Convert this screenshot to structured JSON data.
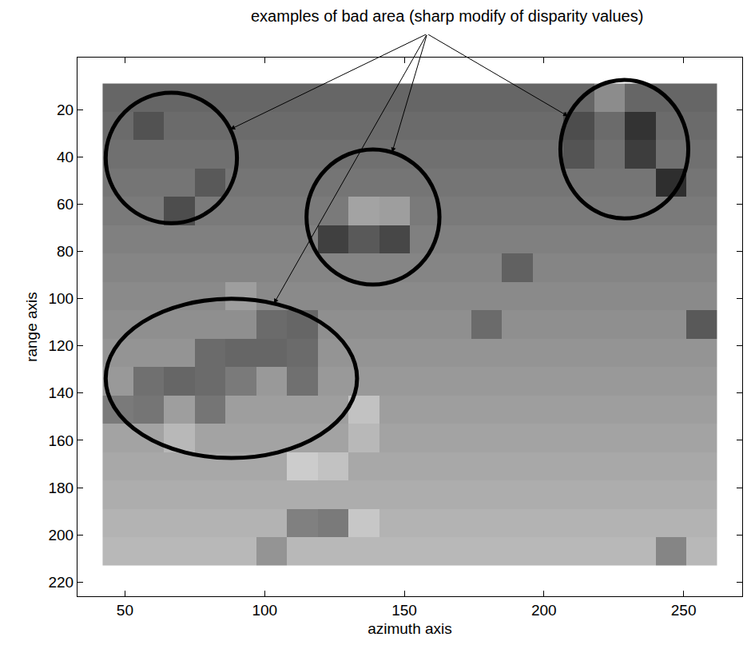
{
  "chart_data": {
    "type": "heatmap",
    "annotation": "examples of bad area (sharp modify of disparity values)",
    "x_label": "azimuth axis",
    "y_label": "range axis",
    "x": [
      47.5,
      58.5,
      69.5,
      80.5,
      91.5,
      102.5,
      113.5,
      124.5,
      135.5,
      146.5,
      157.5,
      168.5,
      179.5,
      190.5,
      201.5,
      212.5,
      223.5,
      234.5,
      245.5,
      256.5
    ],
    "y": [
      15,
      27,
      39,
      51,
      63,
      75,
      87,
      99,
      111,
      123,
      135,
      147,
      159,
      171,
      183,
      195,
      207
    ],
    "z": [
      [
        40,
        40,
        40,
        40,
        40,
        40,
        40,
        40,
        40,
        40,
        40,
        40,
        40,
        40,
        40,
        40,
        55,
        40,
        40,
        40
      ],
      [
        42,
        32,
        42,
        42,
        42,
        42,
        42,
        42,
        42,
        42,
        42,
        42,
        42,
        42,
        42,
        30,
        42,
        20,
        42,
        42
      ],
      [
        44,
        44,
        44,
        44,
        44,
        44,
        44,
        44,
        44,
        44,
        44,
        44,
        44,
        44,
        44,
        33,
        44,
        24,
        44,
        44
      ],
      [
        46,
        46,
        46,
        35,
        46,
        46,
        46,
        46,
        46,
        46,
        46,
        46,
        46,
        46,
        46,
        46,
        46,
        46,
        18,
        46
      ],
      [
        48,
        48,
        30,
        48,
        48,
        48,
        48,
        48,
        64,
        62,
        48,
        48,
        48,
        48,
        48,
        48,
        48,
        48,
        48,
        48
      ],
      [
        50,
        50,
        50,
        50,
        50,
        50,
        50,
        25,
        35,
        28,
        50,
        50,
        50,
        50,
        50,
        50,
        50,
        50,
        50,
        50
      ],
      [
        52,
        52,
        52,
        52,
        52,
        52,
        52,
        52,
        52,
        52,
        52,
        52,
        52,
        38,
        52,
        52,
        52,
        52,
        52,
        52
      ],
      [
        54,
        54,
        54,
        54,
        62,
        54,
        54,
        54,
        54,
        54,
        54,
        54,
        54,
        54,
        54,
        54,
        54,
        54,
        54,
        54
      ],
      [
        56,
        56,
        56,
        56,
        56,
        42,
        40,
        56,
        56,
        56,
        56,
        56,
        42,
        56,
        56,
        56,
        56,
        56,
        56,
        35
      ],
      [
        58,
        58,
        58,
        42,
        40,
        40,
        42,
        58,
        58,
        58,
        58,
        58,
        58,
        58,
        58,
        58,
        58,
        58,
        58,
        58
      ],
      [
        60,
        44,
        40,
        42,
        48,
        60,
        44,
        60,
        60,
        60,
        60,
        60,
        60,
        60,
        60,
        60,
        60,
        60,
        60,
        60
      ],
      [
        48,
        46,
        62,
        46,
        62,
        62,
        62,
        62,
        76,
        62,
        62,
        62,
        62,
        62,
        62,
        62,
        62,
        62,
        62,
        62
      ],
      [
        64,
        64,
        72,
        64,
        64,
        64,
        64,
        64,
        72,
        64,
        64,
        64,
        64,
        64,
        64,
        64,
        64,
        64,
        64,
        64
      ],
      [
        66,
        66,
        66,
        66,
        66,
        66,
        80,
        76,
        66,
        66,
        66,
        66,
        66,
        66,
        66,
        66,
        66,
        66,
        66,
        66
      ],
      [
        68,
        68,
        68,
        68,
        68,
        68,
        68,
        68,
        68,
        68,
        68,
        68,
        68,
        68,
        68,
        68,
        68,
        68,
        68,
        68
      ],
      [
        70,
        70,
        70,
        70,
        70,
        70,
        50,
        48,
        78,
        70,
        70,
        70,
        70,
        70,
        70,
        70,
        70,
        70,
        70,
        70
      ],
      [
        72,
        72,
        72,
        72,
        72,
        58,
        72,
        72,
        72,
        72,
        72,
        72,
        72,
        72,
        72,
        72,
        72,
        72,
        52,
        72
      ]
    ],
    "zlim": [
      0,
      100
    ],
    "xlim": [
      33,
      271
    ],
    "xticks": [
      50,
      100,
      150,
      200,
      250
    ],
    "ylim": [
      -2,
      226
    ],
    "yticks": [
      20,
      40,
      60,
      80,
      100,
      120,
      140,
      160,
      180,
      200,
      220
    ],
    "grid": false,
    "highlighted_regions": [
      {
        "x": 66.6,
        "y": 40.5,
        "rx": 23.5,
        "ry": 27.6
      },
      {
        "x": 138.8,
        "y": 65.5,
        "rx": 23.8,
        "ry": 28.6
      },
      {
        "x": 228.8,
        "y": 36.8,
        "rx": 22.9,
        "ry": 29.3
      },
      {
        "x": 88.1,
        "y": 133.8,
        "rx": 45,
        "ry": 33.7
      }
    ]
  }
}
